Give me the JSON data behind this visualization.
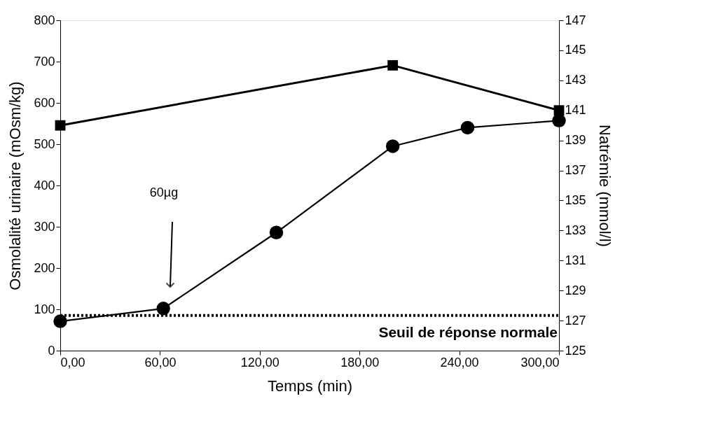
{
  "chart_data": {
    "type": "line",
    "xlabel": "Temps (min)",
    "ylabel": "Osmolalité urinaire (mOsm/kg)",
    "y2label": "Natrémie (mmol/l)",
    "x": [
      0,
      62,
      130,
      200,
      245,
      300
    ],
    "series": [
      {
        "color": "#000000",
        "axis": "y2",
        "marker": "square",
        "x": [
          0,
          200,
          300
        ],
        "values": [
          140,
          144,
          141
        ]
      },
      {
        "color": "#000000",
        "marker": "circle",
        "values": [
          71,
          102,
          286,
          495,
          540,
          557
        ]
      }
    ],
    "xlim": [
      0,
      300
    ],
    "xticks": [
      {
        "value": 0,
        "label": "0,00"
      },
      {
        "value": 60,
        "label": "60,00"
      },
      {
        "value": 120,
        "label": "120,00"
      },
      {
        "value": 180,
        "label": "180,00"
      },
      {
        "value": 240,
        "label": "240,00"
      },
      {
        "value": 300,
        "label": "300,00"
      }
    ],
    "ylim": [
      0,
      800
    ],
    "yticks": [
      0,
      100,
      200,
      300,
      400,
      500,
      600,
      700,
      800
    ],
    "y2lim": [
      125,
      147
    ],
    "y2ticks": [
      125,
      127,
      129,
      131,
      133,
      135,
      137,
      139,
      141,
      143,
      145,
      147
    ],
    "ref_lines": [
      {
        "axis": "y",
        "value": 85,
        "label": "Seuil de réponse normale",
        "line_style": "dotted",
        "color": "#000000"
      }
    ],
    "annotations": [
      "60µg"
    ],
    "grid": false,
    "line_style": "solid"
  }
}
